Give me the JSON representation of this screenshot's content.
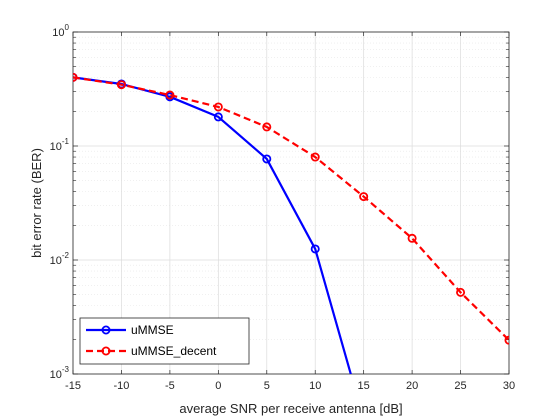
{
  "chart_data": {
    "type": "line",
    "title": "",
    "xlabel": "average SNR per receive antenna [dB]",
    "ylabel": "bit error rate (BER)",
    "x_scale": "linear",
    "y_scale": "log",
    "xlim": [
      -15,
      30
    ],
    "ylim": [
      0.001,
      1
    ],
    "x_ticks": [
      -15,
      -10,
      -5,
      0,
      5,
      10,
      15,
      20,
      25,
      30
    ],
    "x_tick_labels": [
      "-15",
      "-10",
      "-5",
      "0",
      "5",
      "10",
      "15",
      "20",
      "25",
      "30"
    ],
    "y_ticks": [
      {
        "value": 0.001,
        "base": "10",
        "exp": "-3"
      },
      {
        "value": 0.01,
        "base": "10",
        "exp": "-2"
      },
      {
        "value": 0.1,
        "base": "10",
        "exp": "-1"
      },
      {
        "value": 1,
        "base": "10",
        "exp": "0"
      }
    ],
    "grid": true,
    "minor_grid": true,
    "legend_position": "bottom-left",
    "series": [
      {
        "name": "uMMSE",
        "color": "#0000ff",
        "line_style": "solid",
        "marker": "circle",
        "x": [
          -15,
          -10,
          -5,
          0,
          5,
          10,
          15
        ],
        "y": [
          0.4,
          0.35,
          0.27,
          0.18,
          0.077,
          0.0125,
          0.0004
        ]
      },
      {
        "name": "uMMSE_decent",
        "color": "#ff0000",
        "line_style": "dashed",
        "marker": "circle",
        "x": [
          -15,
          -10,
          -5,
          0,
          5,
          10,
          15,
          20,
          25,
          30
        ],
        "y": [
          0.4,
          0.345,
          0.28,
          0.22,
          0.147,
          0.08,
          0.036,
          0.0155,
          0.0052,
          0.00198
        ]
      }
    ]
  }
}
